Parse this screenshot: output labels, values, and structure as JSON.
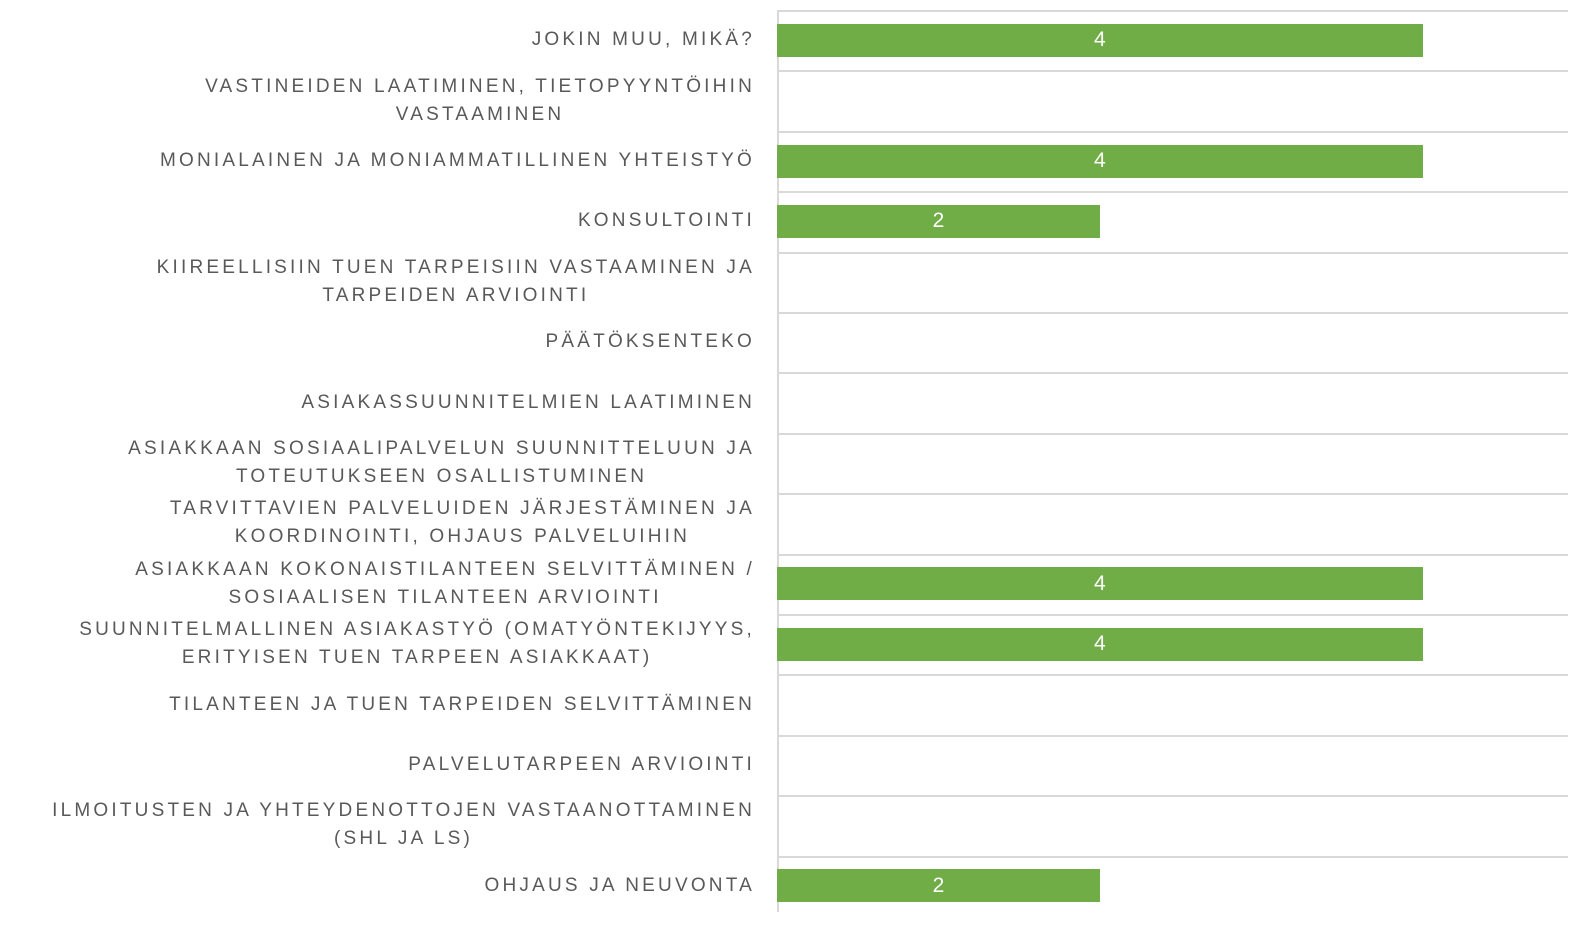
{
  "chart_data": {
    "type": "bar",
    "orientation": "horizontal",
    "categories": [
      "JOKIN MUU, MIKÄ?",
      "VASTINEIDEN LAATIMINEN, TIETOPYYNTÖIHIN\nVASTAAMINEN",
      "MONIALAINEN JA MONIAMMATILLINEN YHTEISTYÖ",
      "KONSULTOINTI",
      "KIIREELLISIIN TUEN TARPEISIIN VASTAAMINEN JA\nTARPEIDEN ARVIOINTI",
      "PÄÄTÖKSENTEKO",
      "ASIAKASSUUNNITELMIEN LAATIMINEN",
      "ASIAKKAAN SOSIAALIPALVELUN SUUNNITTELUUN JA\nTOTEUTUKSEEN OSALLISTUMINEN",
      "TARVITTAVIEN PALVELUIDEN JÄRJESTÄMINEN JA\nKOORDINOINTI, OHJAUS PALVELUIHIN",
      "ASIAKKAAN KOKONAISTILANTEEN SELVITTÄMINEN /\nSOSIAALISEN TILANTEEN ARVIOINTI",
      "SUUNNITELMALLINEN ASIAKASTYÖ (OMATYÖNTEKIJYYS,\nERITYISEN TUEN TARPEEN ASIAKKAAT)",
      "TILANTEEN JA TUEN TARPEIDEN SELVITTÄMINEN",
      "PALVELUTARPEEN ARVIOINTI",
      "ILMOITUSTEN JA YHTEYDENOTTOJEN VASTAANOTTAMINEN\n(SHL JA LS)",
      "OHJAUS JA NEUVONTA"
    ],
    "values": [
      4,
      null,
      4,
      2,
      null,
      null,
      null,
      null,
      null,
      4,
      4,
      null,
      null,
      null,
      2
    ],
    "color": "#70ad47",
    "xlim": [
      0,
      4.9
    ]
  }
}
